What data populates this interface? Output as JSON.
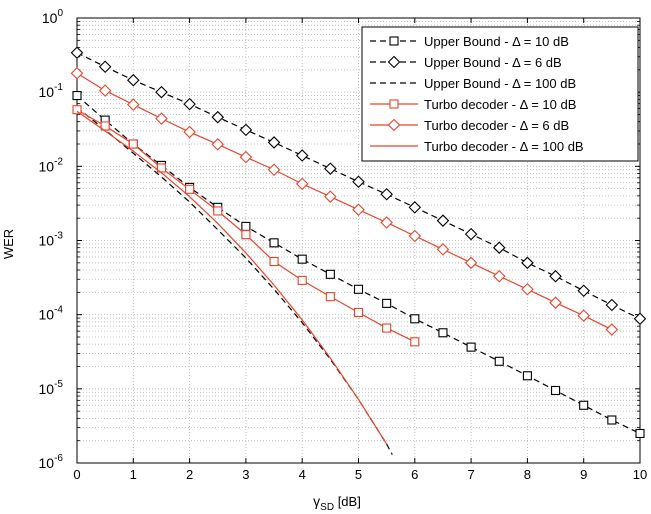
{
  "chart_data": {
    "type": "line",
    "xlabel_main": "γ",
    "xlabel_sub": "SD",
    "xlabel_unit": " [dB]",
    "ylabel": "WER",
    "xlim": [
      0,
      10
    ],
    "ylim": [
      1e-06,
      1
    ],
    "yscale": "log",
    "grid": true,
    "legend_position": "top-right",
    "x_ticks": [
      "0",
      "1",
      "2",
      "3",
      "4",
      "5",
      "6",
      "7",
      "8",
      "9",
      "10"
    ],
    "y_ticks": [
      {
        "base": "10",
        "exp": "0"
      },
      {
        "base": "10",
        "exp": "-1"
      },
      {
        "base": "10",
        "exp": "-2"
      },
      {
        "base": "10",
        "exp": "-3"
      },
      {
        "base": "10",
        "exp": "-4"
      },
      {
        "base": "10",
        "exp": "-5"
      },
      {
        "base": "10",
        "exp": "-6"
      }
    ],
    "series": [
      {
        "name": "Upper Bound - Δ = 10 dB",
        "color": "#000000",
        "dash": true,
        "marker": "square",
        "x": [
          0,
          0.5,
          1,
          1.5,
          2,
          2.5,
          3,
          3.5,
          4,
          4.5,
          5,
          5.5,
          6,
          6.5,
          7,
          7.5,
          8,
          8.5,
          9,
          9.5,
          10
        ],
        "y": [
          0.09,
          0.042,
          0.02,
          0.0103,
          0.0052,
          0.0028,
          0.00155,
          0.00093,
          0.00056,
          0.00035,
          0.00022,
          0.000142,
          8.8e-05,
          5.7e-05,
          3.65e-05,
          2.35e-05,
          1.5e-05,
          9.5e-06,
          6e-06,
          3.8e-06,
          2.5e-06
        ]
      },
      {
        "name": "Upper Bound - Δ = 6 dB",
        "color": "#000000",
        "dash": true,
        "marker": "diamond",
        "x": [
          0,
          0.5,
          1,
          1.5,
          2,
          2.5,
          3,
          3.5,
          4,
          4.5,
          5,
          5.5,
          6,
          6.5,
          7,
          7.5,
          8,
          8.5,
          9,
          9.5,
          10
        ],
        "y": [
          0.34,
          0.22,
          0.145,
          0.1,
          0.069,
          0.046,
          0.031,
          0.021,
          0.014,
          0.0093,
          0.0062,
          0.0042,
          0.0028,
          0.00185,
          0.00122,
          0.0008,
          0.0005,
          0.00033,
          0.00021,
          0.000135,
          8.8e-05
        ]
      },
      {
        "name": "Upper Bound - Δ = 100 dB",
        "color": "#000000",
        "dash": true,
        "marker": "none",
        "x": [
          0,
          0.5,
          1,
          1.5,
          2,
          2.5,
          3,
          3.5,
          4,
          4.5,
          5,
          5.5,
          5.6
        ],
        "y": [
          0.062,
          0.031,
          0.015,
          0.0072,
          0.0033,
          0.0014,
          0.00058,
          0.00022,
          7.8e-05,
          2.5e-05,
          7.2e-06,
          1.8e-06,
          1.3e-06
        ]
      },
      {
        "name": "Turbo decoder - Δ = 10 dB",
        "color": "#e8452c",
        "dash": false,
        "marker": "square",
        "x": [
          0,
          0.5,
          1,
          1.5,
          2,
          2.5,
          3
        ],
        "y": [
          0.058,
          0.035,
          0.02,
          0.0095,
          0.0049,
          0.0025,
          0.0012
        ]
      },
      {
        "name": "Turbo decoder - Δ = 6 dB",
        "color": "#e8452c",
        "dash": false,
        "marker": "diamond",
        "x": [
          0,
          0.5,
          1,
          1.5,
          2,
          2.5,
          3,
          3.5,
          4,
          4.5,
          5,
          5.5,
          6,
          6.5,
          7,
          7.5,
          8,
          8.5,
          9,
          9.5
        ],
        "y": [
          0.18,
          0.105,
          0.068,
          0.044,
          0.029,
          0.0198,
          0.0133,
          0.009,
          0.0058,
          0.0039,
          0.0026,
          0.00175,
          0.00115,
          0.00076,
          0.0005,
          0.00033,
          0.00022,
          0.000145,
          9.7e-05,
          6.3e-05
        ]
      },
      {
        "name": "Turbo decoder - Δ = 100 dB",
        "color": "#e8452c",
        "dash": false,
        "marker": "none",
        "x": [
          0,
          0.5,
          1,
          1.5,
          2,
          2.5,
          3,
          3.5,
          4,
          4.5,
          5,
          5.5
        ],
        "y": [
          0.055,
          0.03,
          0.016,
          0.0082,
          0.0039,
          0.0017,
          0.00068,
          0.00025,
          8.5e-05,
          2.6e-05,
          7.2e-06,
          1.8e-06
        ]
      }
    ],
    "overlay_series": [
      {
        "name": "Turbo decoder - Δ = 10 dB",
        "color": "#e8452c",
        "marker": "square",
        "x": [
          3,
          3.5,
          4,
          4.5,
          5,
          5.5,
          6
        ],
        "y": [
          0.0012,
          0.00052,
          0.00029,
          0.000175,
          0.000107,
          6.6e-05,
          4.3e-05
        ]
      }
    ]
  }
}
